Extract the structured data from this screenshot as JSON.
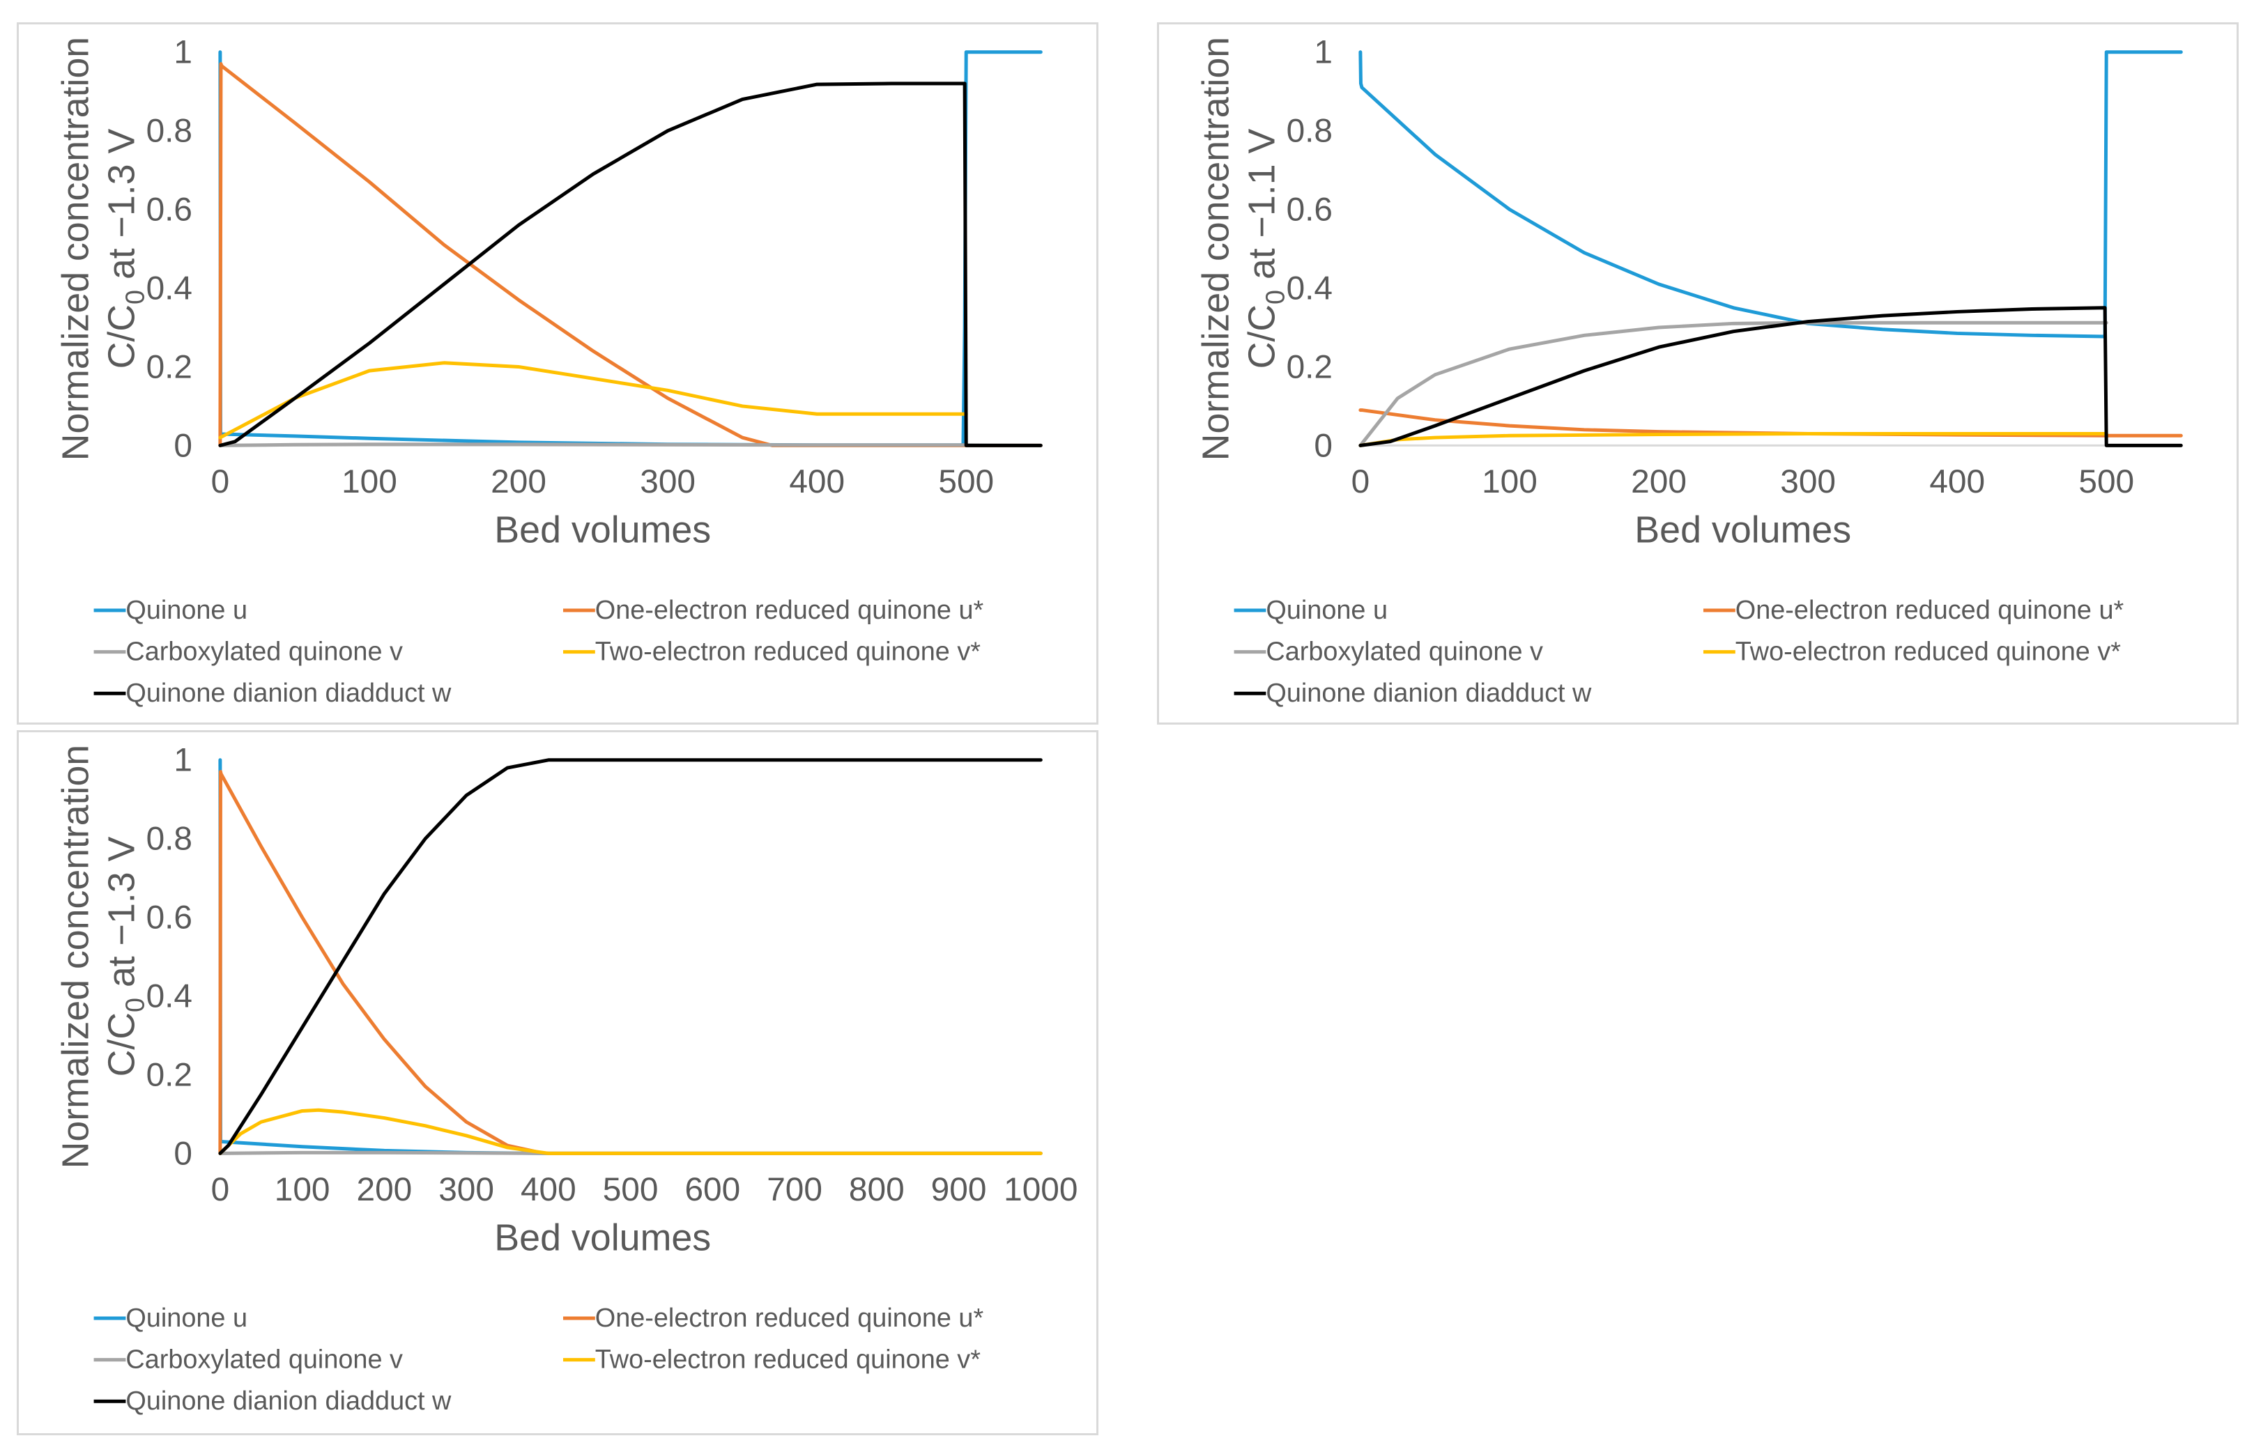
{
  "chart_data": [
    {
      "type": "line",
      "title": "",
      "xlabel": "Bed volumes",
      "ylabel_line1": "Normalized concentration",
      "ylabel_line2_prefix": "C/C",
      "ylabel_line2_sub": "0",
      "ylabel_line2_suffix": " at −1.3 V",
      "xlim": [
        0,
        550
      ],
      "ylim": [
        0,
        1
      ],
      "xticks": [
        0,
        100,
        200,
        300,
        400,
        500
      ],
      "xtick_labels": [
        "0",
        "100",
        "200",
        "300",
        "400",
        "500"
      ],
      "yticks": [
        0,
        0.2,
        0.4,
        0.6,
        0.8,
        1
      ],
      "ytick_labels": [
        "0",
        "0.2",
        "0.4",
        "0.6",
        "0.8",
        "1"
      ],
      "legend_position": "bottom",
      "series": [
        {
          "name": "Quinone u",
          "color": "#1f9bd7",
          "x": [
            0,
            0.3,
            1,
            50,
            100,
            200,
            300,
            400,
            498,
            499,
            500,
            501,
            550
          ],
          "y": [
            1,
            0.03,
            0.029,
            0.024,
            0.018,
            0.008,
            0.003,
            0.001,
            0.001,
            0.3,
            1,
            1,
            1
          ]
        },
        {
          "name": "One-electron reduced quinone u*",
          "color": "#ed7d31",
          "x": [
            0,
            0.5,
            1,
            50,
            100,
            150,
            200,
            250,
            300,
            350,
            370,
            400,
            500,
            550
          ],
          "y": [
            0,
            0.97,
            0.965,
            0.82,
            0.67,
            0.51,
            0.37,
            0.24,
            0.12,
            0.02,
            0,
            0,
            0,
            0
          ]
        },
        {
          "name": "Carboxylated quinone v",
          "color": "#a5a5a5",
          "x": [
            0,
            50,
            100,
            200,
            300,
            400,
            500,
            550
          ],
          "y": [
            0,
            0.002,
            0.003,
            0.003,
            0.002,
            0.001,
            0.001,
            0
          ]
        },
        {
          "name": "Two-electron reduced quinone v*",
          "color": "#ffc000",
          "x": [
            0,
            25,
            50,
            100,
            150,
            200,
            250,
            300,
            350,
            400,
            500
          ],
          "y": [
            0.02,
            0.07,
            0.12,
            0.19,
            0.21,
            0.2,
            0.17,
            0.14,
            0.1,
            0.08,
            0.08
          ]
        },
        {
          "name": "Quinone dianion diadduct w",
          "color": "#000000",
          "x": [
            0,
            10,
            50,
            100,
            150,
            200,
            250,
            300,
            350,
            400,
            450,
            499,
            500,
            550
          ],
          "y": [
            0,
            0.01,
            0.12,
            0.26,
            0.41,
            0.56,
            0.69,
            0.8,
            0.88,
            0.918,
            0.92,
            0.92,
            0,
            0
          ]
        }
      ]
    },
    {
      "type": "line",
      "title": "",
      "xlabel": "Bed volumes",
      "ylabel_line1": "Normalized concentration",
      "ylabel_line2_prefix": "C/C",
      "ylabel_line2_sub": "0",
      "ylabel_line2_suffix": " at −1.1 V",
      "xlim": [
        0,
        550
      ],
      "ylim": [
        0,
        1
      ],
      "xticks": [
        0,
        100,
        200,
        300,
        400,
        500
      ],
      "xtick_labels": [
        "0",
        "100",
        "200",
        "300",
        "400",
        "500"
      ],
      "yticks": [
        0,
        0.2,
        0.4,
        0.6,
        0.8,
        1
      ],
      "ytick_labels": [
        "0",
        "0.2",
        "0.4",
        "0.6",
        "0.8",
        "1"
      ],
      "legend_position": "bottom",
      "series": [
        {
          "name": "Quinone u",
          "color": "#1f9bd7",
          "x": [
            0,
            0.3,
            1,
            50,
            100,
            150,
            200,
            250,
            300,
            350,
            400,
            450,
            499,
            500,
            501,
            550
          ],
          "y": [
            1,
            0.92,
            0.91,
            0.74,
            0.6,
            0.49,
            0.41,
            0.35,
            0.31,
            0.295,
            0.285,
            0.28,
            0.277,
            1,
            1,
            1
          ]
        },
        {
          "name": "One-electron reduced quinone u*",
          "color": "#ed7d31",
          "x": [
            0,
            1,
            50,
            100,
            150,
            200,
            300,
            400,
            500,
            550
          ],
          "y": [
            0.09,
            0.09,
            0.065,
            0.05,
            0.04,
            0.035,
            0.03,
            0.027,
            0.025,
            0.025
          ]
        },
        {
          "name": "Carboxylated quinone v",
          "color": "#a5a5a5",
          "x": [
            0,
            25,
            50,
            100,
            150,
            200,
            250,
            300,
            400,
            500
          ],
          "y": [
            0,
            0.12,
            0.18,
            0.245,
            0.28,
            0.3,
            0.31,
            0.312,
            0.312,
            0.312
          ]
        },
        {
          "name": "Two-electron reduced quinone v*",
          "color": "#ffc000",
          "x": [
            0,
            25,
            50,
            100,
            200,
            300,
            400,
            500
          ],
          "y": [
            0,
            0.015,
            0.02,
            0.025,
            0.028,
            0.03,
            0.03,
            0.03
          ]
        },
        {
          "name": "Quinone dianion diadduct w",
          "color": "#000000",
          "x": [
            0,
            20,
            50,
            100,
            150,
            200,
            250,
            300,
            350,
            400,
            450,
            499,
            500,
            550
          ],
          "y": [
            0,
            0.01,
            0.05,
            0.12,
            0.19,
            0.25,
            0.29,
            0.315,
            0.33,
            0.34,
            0.347,
            0.35,
            0,
            0
          ]
        }
      ]
    },
    {
      "type": "line",
      "title": "",
      "xlabel": "Bed volumes",
      "ylabel_line1": "Normalized concentration",
      "ylabel_line2_prefix": "C/C",
      "ylabel_line2_sub": "0",
      "ylabel_line2_suffix": " at −1.3 V",
      "xlim": [
        0,
        1000
      ],
      "ylim": [
        0,
        1
      ],
      "xticks": [
        0,
        100,
        200,
        300,
        400,
        500,
        600,
        700,
        800,
        900,
        1000
      ],
      "xtick_labels": [
        "0",
        "100",
        "200",
        "300",
        "400",
        "500",
        "600",
        "700",
        "800",
        "900",
        "1000"
      ],
      "yticks": [
        0,
        0.2,
        0.4,
        0.6,
        0.8,
        1
      ],
      "ytick_labels": [
        "0",
        "0.2",
        "0.4",
        "0.6",
        "0.8",
        "1"
      ],
      "legend_position": "bottom",
      "series": [
        {
          "name": "Quinone u",
          "color": "#1f9bd7",
          "x": [
            0,
            0.5,
            1,
            100,
            200,
            300,
            400,
            1000
          ],
          "y": [
            1,
            0.03,
            0.03,
            0.017,
            0.007,
            0.002,
            0,
            0
          ]
        },
        {
          "name": "One-electron reduced quinone u*",
          "color": "#ed7d31",
          "x": [
            0,
            0.5,
            1,
            50,
            100,
            150,
            200,
            250,
            300,
            350,
            390,
            400,
            1000
          ],
          "y": [
            0,
            0.97,
            0.965,
            0.78,
            0.6,
            0.43,
            0.29,
            0.17,
            0.08,
            0.02,
            0.002,
            0,
            0
          ]
        },
        {
          "name": "Carboxylated quinone v",
          "color": "#a5a5a5",
          "x": [
            0,
            100,
            200,
            300,
            400,
            1000
          ],
          "y": [
            0,
            0.002,
            0.002,
            0.001,
            0,
            0
          ]
        },
        {
          "name": "Two-electron reduced quinone v*",
          "color": "#ffc000",
          "x": [
            0,
            25,
            50,
            100,
            120,
            150,
            200,
            250,
            300,
            350,
            400,
            1000
          ],
          "y": [
            0,
            0.05,
            0.08,
            0.108,
            0.11,
            0.105,
            0.09,
            0.07,
            0.045,
            0.015,
            0,
            0
          ]
        },
        {
          "name": "Quinone dianion diadduct w",
          "color": "#000000",
          "x": [
            0,
            10,
            50,
            100,
            150,
            200,
            250,
            300,
            350,
            400,
            1000
          ],
          "y": [
            0,
            0.02,
            0.15,
            0.32,
            0.49,
            0.66,
            0.8,
            0.91,
            0.98,
            1,
            1
          ]
        }
      ]
    }
  ]
}
